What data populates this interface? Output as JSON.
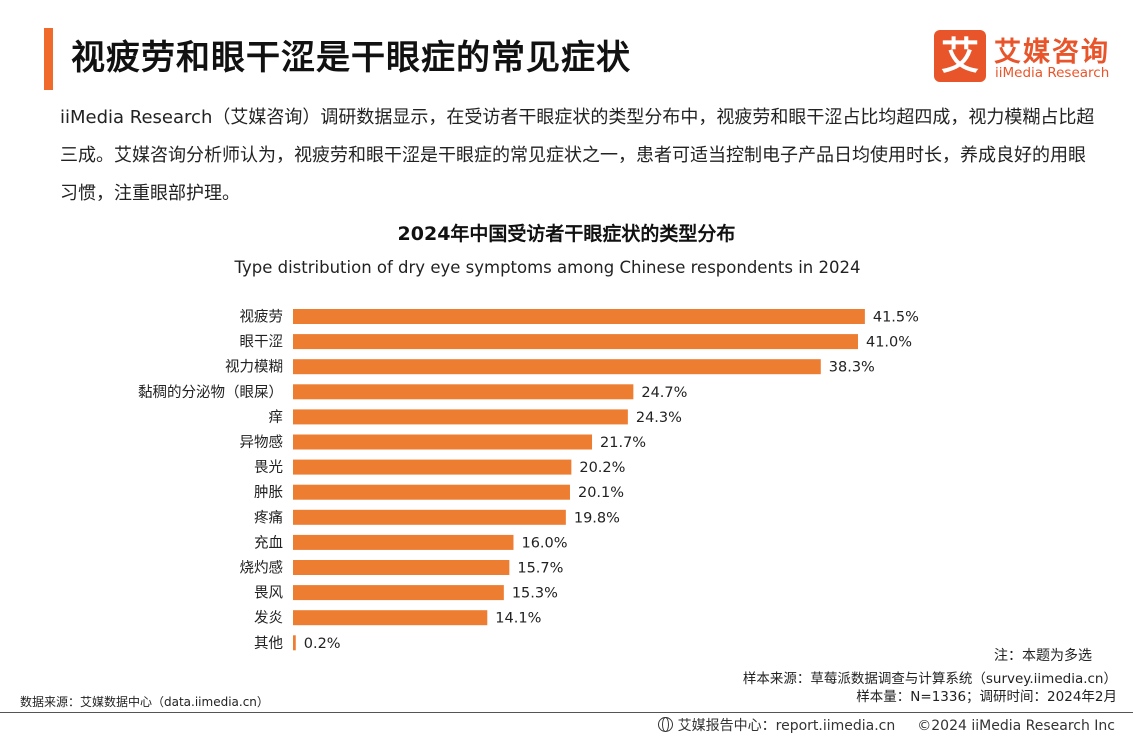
{
  "header": {
    "title": "视疲劳和眼干涩是干眼症的常见症状",
    "accent_color": "#ef6a2b",
    "logo": {
      "icon_name": "ai-character-logo-icon",
      "mark_text": "艾",
      "cn_name": "艾媒咨询",
      "en_name": "iiMedia Research",
      "brand_color": "#e8552a"
    }
  },
  "intro_text": "iiMedia Research（艾媒咨询）调研数据显示，在受访者干眼症状的类型分布中，视疲劳和眼干涩占比均超四成，视力模糊占比超三成。艾媒咨询分析师认为，视疲劳和眼干涩是干眼症的常见症状之一，患者可适当控制电子产品日均使用时长，养成良好的用眼习惯，注重眼部护理。",
  "chart_data": {
    "type": "bar",
    "orientation": "horizontal",
    "title": "2024年中国受访者干眼症状的类型分布",
    "subtitle": "Type distribution of dry eye symptoms among Chinese respondents in 2024",
    "categories": [
      "视疲劳",
      "眼干涩",
      "视力模糊",
      "黏稠的分泌物（眼屎）",
      "痒",
      "异物感",
      "畏光",
      "肿胀",
      "疼痛",
      "充血",
      "烧灼感",
      "畏风",
      "发炎",
      "其他"
    ],
    "values": [
      41.5,
      41.0,
      38.3,
      24.7,
      24.3,
      21.7,
      20.2,
      20.1,
      19.8,
      16.0,
      15.7,
      15.3,
      14.1,
      0.2
    ],
    "value_labels": [
      "41.5%",
      "41.0%",
      "38.3%",
      "24.7%",
      "24.3%",
      "21.7%",
      "20.2%",
      "20.1%",
      "19.8%",
      "16.0%",
      "15.7%",
      "15.3%",
      "14.1%",
      "0.2%"
    ],
    "unit": "%",
    "xlim": [
      0,
      45
    ],
    "bar_color": "#ed7d31",
    "grid": false,
    "legend": "none"
  },
  "notes": {
    "multi_select": "注：本题为多选",
    "sample_source": "样本来源：草莓派数据调查与计算系统（survey.iimedia.cn）",
    "sample_size": "样本量：N=1336；调研时间：2024年2月",
    "data_source": "数据来源：艾媒数据中心（data.iimedia.cn）"
  },
  "footer": {
    "icon_name": "globe-icon",
    "report_center": "艾媒报告中心：report.iimedia.cn",
    "copyright": "©2024  iiMedia Research  Inc"
  }
}
